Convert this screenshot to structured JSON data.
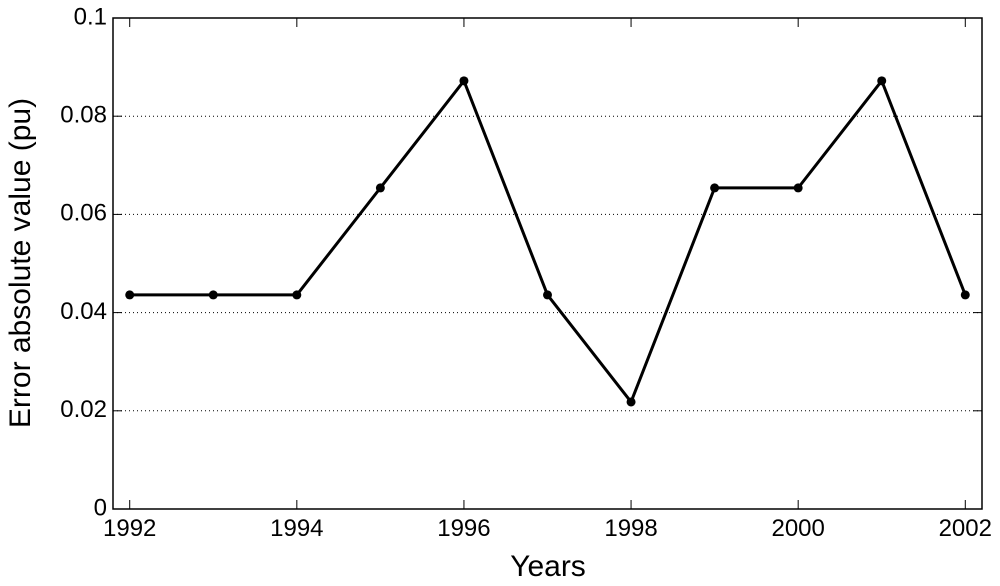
{
  "chart_data": {
    "type": "line",
    "x_label": "Years",
    "y_label": "Error absolute value (pu)",
    "x": [
      1992,
      1993,
      1994,
      1995,
      1996,
      1997,
      1998,
      1999,
      2000,
      2001,
      2002
    ],
    "series": [
      {
        "color": "#000000",
        "values": [
          0.0436,
          0.0436,
          0.0436,
          0.0654,
          0.0872,
          0.0436,
          0.0218,
          0.0654,
          0.0654,
          0.0872,
          0.0436
        ]
      }
    ],
    "xlim": [
      1991.8,
      2002.2
    ],
    "xticks": [
      1992,
      1994,
      1996,
      1998,
      2000,
      2002
    ],
    "ylim": [
      0,
      0.1
    ],
    "yticks": [
      0,
      0.02,
      0.04,
      0.06,
      0.08,
      0.1
    ],
    "grid": true
  }
}
